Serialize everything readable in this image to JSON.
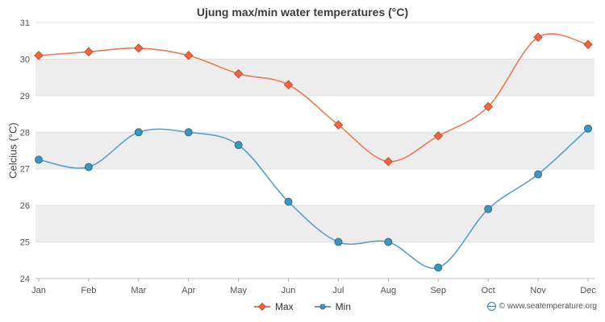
{
  "title": "Ujung max/min water temperatures (°C)",
  "ylabel": "Celcius (°C)",
  "footer": "© www.seatemperature.org",
  "chart_data": {
    "type": "line",
    "title": "Ujung max/min water temperatures (°C)",
    "xlabel": "",
    "ylabel": "Celcius (°C)",
    "categories": [
      "Jan",
      "Feb",
      "Mar",
      "Apr",
      "May",
      "Jun",
      "Jul",
      "Aug",
      "Sep",
      "Oct",
      "Nov",
      "Dec"
    ],
    "series": [
      {
        "name": "Max",
        "marker": "diamond",
        "color": "#e97c54",
        "marker_fill": "#ed6742",
        "marker_stroke": "#c94f28",
        "values": [
          30.1,
          30.2,
          30.3,
          30.1,
          29.6,
          29.3,
          28.2,
          27.2,
          27.9,
          28.7,
          30.6,
          30.4
        ]
      },
      {
        "name": "Min",
        "marker": "circle",
        "color": "#5f9fc4",
        "marker_fill": "#3d96c0",
        "marker_stroke": "#2d7596",
        "values": [
          27.25,
          27.05,
          28.0,
          28.0,
          27.65,
          26.1,
          25.0,
          25.0,
          24.3,
          25.9,
          26.85,
          28.1
        ]
      }
    ],
    "ylim": [
      24,
      31
    ],
    "ytick_step": 1,
    "grid": true,
    "legend_position": "bottom",
    "band_colors": [
      "#ffffff",
      "#ededed"
    ]
  }
}
